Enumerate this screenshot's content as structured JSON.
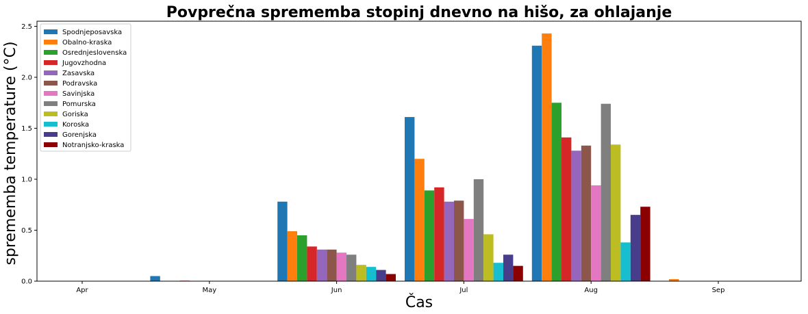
{
  "chart_data": {
    "type": "bar",
    "title": "Povprečna sprememba stopinj dnevno na hišo, za ohlajanje",
    "xlabel": "Čas",
    "ylabel": "sprememba temperature (°C)",
    "categories": [
      "Apr",
      "May",
      "Jun",
      "Jul",
      "Aug",
      "Sep"
    ],
    "ylim": [
      0,
      2.55
    ],
    "yticks": [
      0.0,
      0.5,
      1.0,
      1.5,
      2.0,
      2.5
    ],
    "ytick_labels": [
      "0.0",
      "0.5",
      "1.0",
      "1.5",
      "2.0",
      "2.5"
    ],
    "grid": false,
    "legend_position": "top-left",
    "series": [
      {
        "name": "Spodnjeposavska",
        "color": "#1f77b4",
        "values": [
          0,
          0.05,
          0.78,
          1.61,
          2.31,
          0
        ]
      },
      {
        "name": "Obalno-kraska",
        "color": "#ff7f0e",
        "values": [
          0,
          0,
          0.49,
          1.2,
          2.43,
          0.02
        ]
      },
      {
        "name": "Osrednjeslovenska",
        "color": "#2ca02c",
        "values": [
          0,
          0,
          0.45,
          0.89,
          1.75,
          0
        ]
      },
      {
        "name": "Jugovzhodna",
        "color": "#d62728",
        "values": [
          0,
          0.005,
          0.34,
          0.92,
          1.41,
          0
        ]
      },
      {
        "name": "Zasavska",
        "color": "#9467bd",
        "values": [
          0,
          0,
          0.31,
          0.78,
          1.28,
          0
        ]
      },
      {
        "name": "Podravska",
        "color": "#8c564b",
        "values": [
          0,
          0,
          0.31,
          0.79,
          1.33,
          0
        ]
      },
      {
        "name": "Savinjska",
        "color": "#e377c2",
        "values": [
          0,
          0,
          0.28,
          0.61,
          0.94,
          0
        ]
      },
      {
        "name": "Pomurska",
        "color": "#7f7f7f",
        "values": [
          0,
          0,
          0.26,
          1.0,
          1.74,
          0
        ]
      },
      {
        "name": "Goriska",
        "color": "#bcbd22",
        "values": [
          0,
          0,
          0.16,
          0.46,
          1.34,
          0
        ]
      },
      {
        "name": "Koroska",
        "color": "#17becf",
        "values": [
          0,
          0,
          0.14,
          0.18,
          0.38,
          0
        ]
      },
      {
        "name": "Gorenjska",
        "color": "#483d8b",
        "values": [
          0,
          0,
          0.11,
          0.26,
          0.65,
          0
        ]
      },
      {
        "name": "Notranjsko-kraska",
        "color": "#8b0000",
        "values": [
          0,
          0,
          0.07,
          0.15,
          0.73,
          0
        ]
      }
    ]
  }
}
